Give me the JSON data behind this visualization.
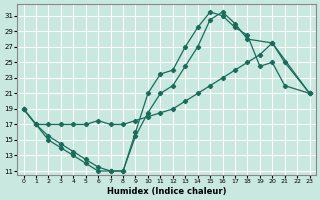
{
  "xlabel": "Humidex (Indice chaleur)",
  "bg_color": "#c8e8e0",
  "grid_color": "#ffffff",
  "line_color": "#1a6b5a",
  "xlim": [
    -0.5,
    23.5
  ],
  "ylim": [
    10.5,
    32.5
  ],
  "xticks": [
    0,
    1,
    2,
    3,
    4,
    5,
    6,
    7,
    8,
    9,
    10,
    11,
    12,
    13,
    14,
    15,
    16,
    17,
    18,
    19,
    20,
    21,
    22,
    23
  ],
  "yticks": [
    11,
    13,
    15,
    17,
    19,
    21,
    23,
    25,
    27,
    29,
    31
  ],
  "line1_x": [
    0,
    1,
    2,
    3,
    4,
    5,
    6,
    7,
    8,
    9,
    10,
    11,
    12,
    13,
    14,
    15,
    16,
    17,
    18,
    19,
    20,
    21,
    23
  ],
  "line1_y": [
    19,
    17,
    15,
    14,
    13,
    12,
    11,
    11,
    11,
    16,
    21,
    23.5,
    24,
    27,
    29.5,
    31.5,
    31,
    29.5,
    28.5,
    24.5,
    25,
    22,
    21
  ],
  "line2_x": [
    0,
    1,
    2,
    3,
    4,
    5,
    6,
    7,
    8,
    9,
    10,
    11,
    12,
    13,
    14,
    15,
    16,
    17,
    18,
    19,
    20,
    23
  ],
  "line2_y": [
    19,
    17,
    17,
    17,
    17,
    17,
    17.5,
    17,
    17,
    17.5,
    18,
    18.5,
    19,
    20,
    21,
    22,
    23,
    24,
    25,
    26,
    27.5,
    21
  ],
  "line3_x": [
    0,
    1,
    2,
    3,
    4,
    5,
    6,
    7,
    8,
    9,
    10,
    11,
    12,
    13,
    14,
    15,
    16,
    17,
    18,
    20,
    21,
    23
  ],
  "line3_y": [
    19,
    17,
    15.5,
    14.5,
    13.5,
    12.5,
    11.5,
    11,
    11,
    15.5,
    18.5,
    21,
    22,
    24.5,
    27,
    30.5,
    31.5,
    30,
    28,
    27.5,
    25,
    21
  ]
}
